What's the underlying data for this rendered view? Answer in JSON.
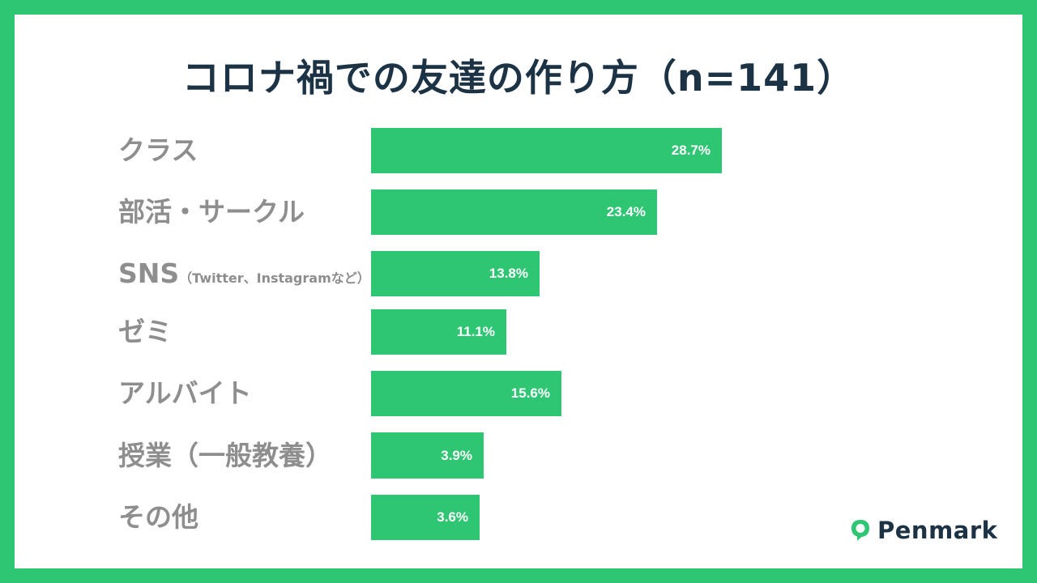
{
  "title": "コロナ禍での友達の作り方（n=141）",
  "brand": {
    "name": "Penmark",
    "accent": "#2ec573",
    "text_color": "#1c3346"
  },
  "chart_data": {
    "type": "bar",
    "orientation": "horizontal",
    "title": "コロナ禍での友達の作り方（n=141）",
    "xlabel": "",
    "ylabel": "",
    "unit": "%",
    "categories": [
      "クラス",
      "部活・サークル",
      "SNS（Twitter、Instagramなど）",
      "ゼミ",
      "アルバイト",
      "授業（一般教養）",
      "その他"
    ],
    "values": [
      28.7,
      23.4,
      13.8,
      11.1,
      15.6,
      3.9,
      3.6
    ],
    "value_labels": [
      "28.7%",
      "23.4%",
      "13.8%",
      "11.1%",
      "15.6%",
      "3.9%",
      "3.6%"
    ],
    "bar_color": "#2ec573",
    "grid": false,
    "legend": null
  },
  "labels": [
    {
      "main": "クラス",
      "sub": ""
    },
    {
      "main": "部活・サークル",
      "sub": ""
    },
    {
      "main": "SNS",
      "sub": "（Twitter、Instagramなど）"
    },
    {
      "main": "ゼミ",
      "sub": ""
    },
    {
      "main": "アルバイト",
      "sub": ""
    },
    {
      "main": "授業（一般教養）",
      "sub": ""
    },
    {
      "main": "その他",
      "sub": ""
    }
  ]
}
